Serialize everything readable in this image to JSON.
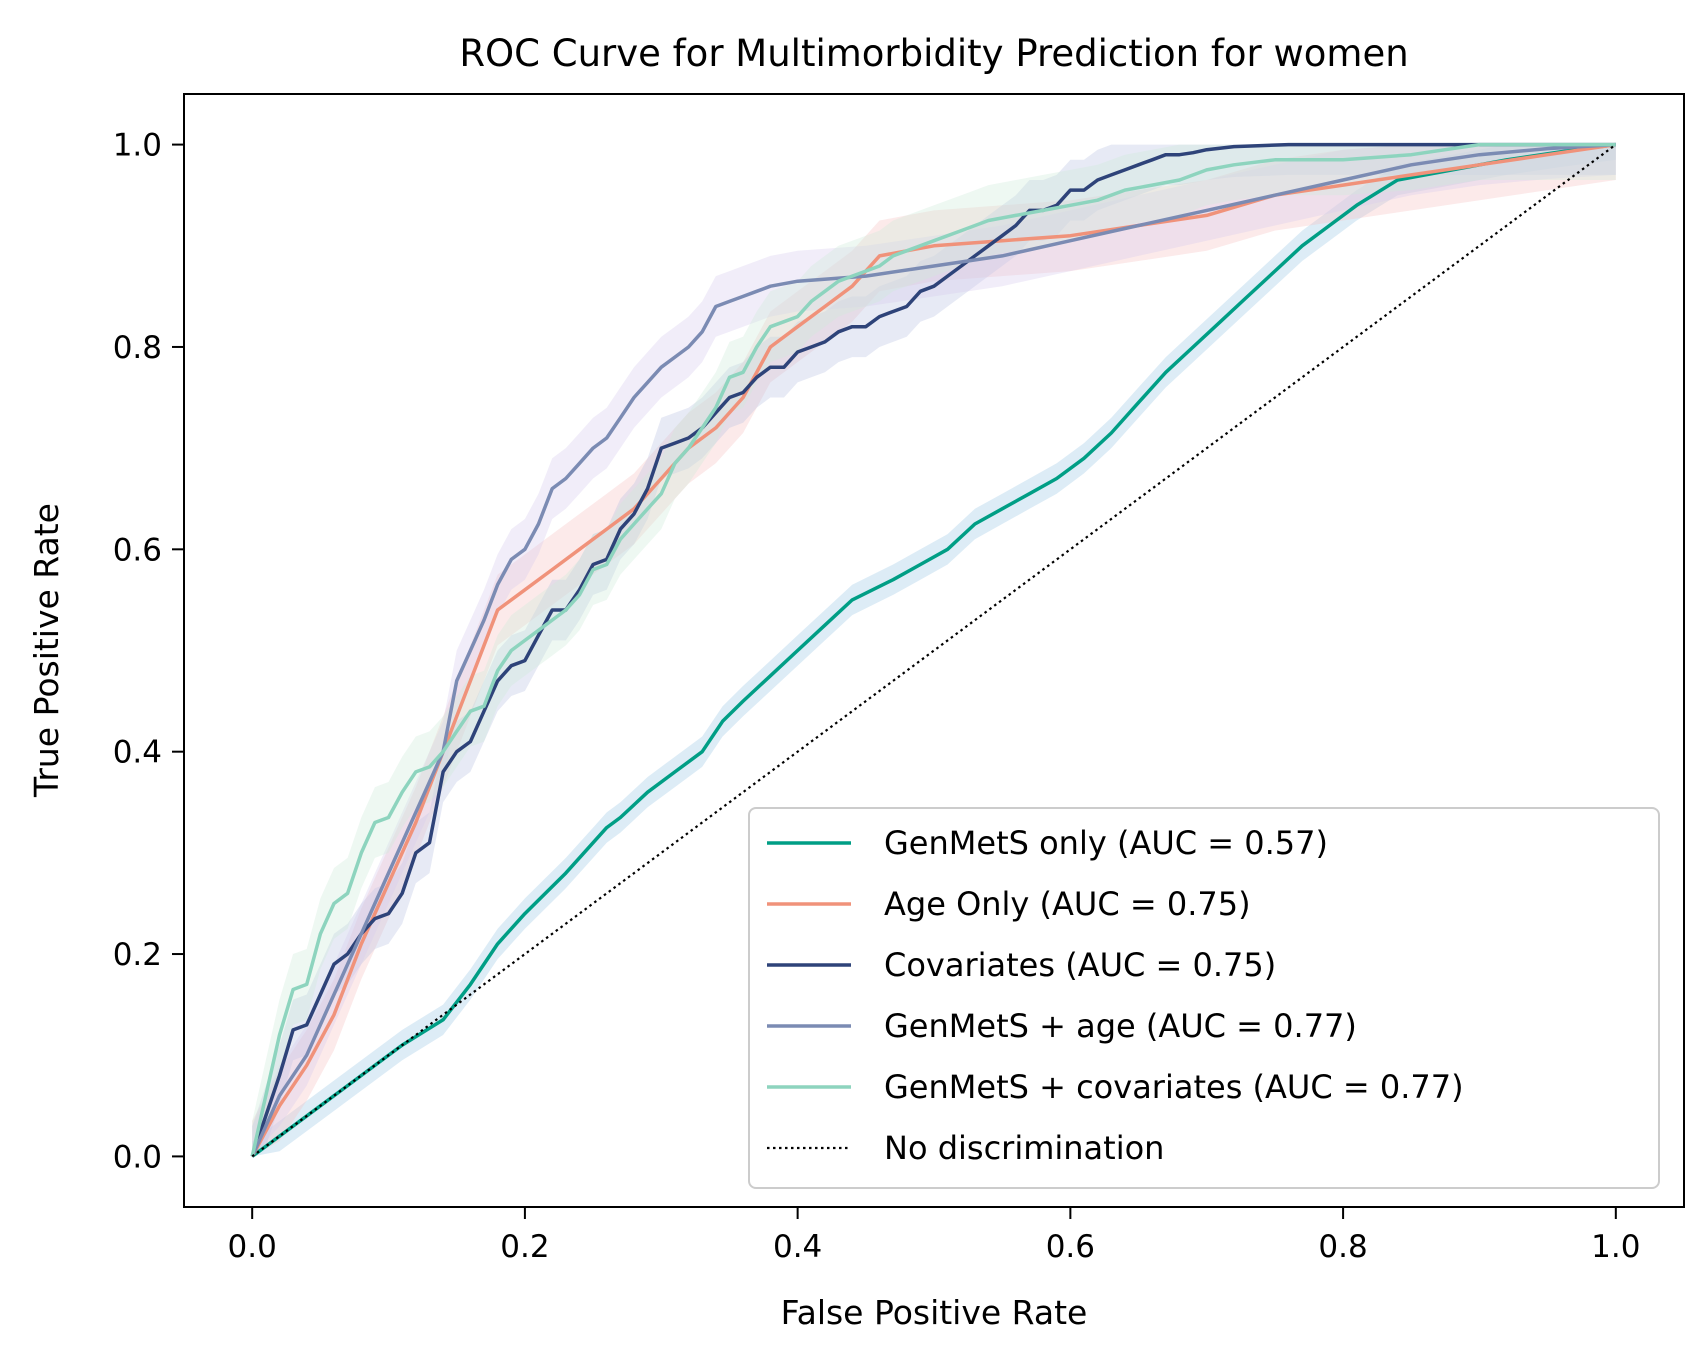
{
  "chart_data": {
    "type": "line",
    "title": "ROC Curve for Multimorbidity Prediction for women",
    "xlabel": "False Positive Rate",
    "ylabel": "True Positive Rate",
    "xlim": [
      -0.05,
      1.05
    ],
    "ylim": [
      -0.05,
      1.05
    ],
    "xticks": [
      0.0,
      0.2,
      0.4,
      0.6,
      0.8,
      1.0
    ],
    "yticks": [
      0.0,
      0.2,
      0.4,
      0.6,
      0.8,
      1.0
    ],
    "xtick_labels": [
      "0.0",
      "0.2",
      "0.4",
      "0.6",
      "0.8",
      "1.0"
    ],
    "ytick_labels": [
      "0.0",
      "0.2",
      "0.4",
      "0.6",
      "0.8",
      "1.0"
    ],
    "grid": false,
    "legend_position": "lower-right",
    "series": [
      {
        "name": "GenMetS only (AUC = 0.57)",
        "color": "#009E85",
        "band_color": "#9EC8E6",
        "x": [
          0.0,
          0.02,
          0.05,
          0.08,
          0.11,
          0.14,
          0.16,
          0.18,
          0.2,
          0.23,
          0.25,
          0.26,
          0.27,
          0.29,
          0.31,
          0.33,
          0.345,
          0.36,
          0.38,
          0.4,
          0.42,
          0.44,
          0.455,
          0.47,
          0.49,
          0.51,
          0.53,
          0.55,
          0.57,
          0.59,
          0.61,
          0.63,
          0.65,
          0.67,
          0.69,
          0.71,
          0.73,
          0.75,
          0.77,
          0.79,
          0.81,
          0.84,
          0.88,
          0.92,
          0.96,
          1.0
        ],
        "y": [
          0.0,
          0.02,
          0.05,
          0.08,
          0.11,
          0.135,
          0.17,
          0.21,
          0.24,
          0.28,
          0.31,
          0.325,
          0.335,
          0.36,
          0.38,
          0.4,
          0.43,
          0.45,
          0.475,
          0.5,
          0.525,
          0.55,
          0.56,
          0.57,
          0.585,
          0.6,
          0.625,
          0.64,
          0.655,
          0.67,
          0.69,
          0.715,
          0.745,
          0.775,
          0.8,
          0.825,
          0.85,
          0.875,
          0.9,
          0.92,
          0.94,
          0.965,
          0.975,
          0.985,
          0.993,
          1.0
        ],
        "band": 0.015
      },
      {
        "name": "Age Only (AUC = 0.75)",
        "color": "#F0927A",
        "band_color": "#F6C4C4",
        "x": [
          0.0,
          0.02,
          0.04,
          0.06,
          0.08,
          0.1,
          0.12,
          0.14,
          0.16,
          0.18,
          0.2,
          0.22,
          0.24,
          0.26,
          0.28,
          0.3,
          0.32,
          0.34,
          0.36,
          0.38,
          0.4,
          0.42,
          0.44,
          0.46,
          0.48,
          0.5,
          0.55,
          0.6,
          0.65,
          0.7,
          0.75,
          0.8,
          0.85,
          0.9,
          0.95,
          1.0
        ],
        "y": [
          0.0,
          0.05,
          0.09,
          0.14,
          0.21,
          0.27,
          0.33,
          0.4,
          0.47,
          0.54,
          0.56,
          0.58,
          0.6,
          0.62,
          0.64,
          0.67,
          0.7,
          0.72,
          0.75,
          0.8,
          0.82,
          0.84,
          0.86,
          0.89,
          0.895,
          0.9,
          0.905,
          0.91,
          0.92,
          0.93,
          0.95,
          0.96,
          0.97,
          0.98,
          0.99,
          1.0
        ],
        "band": 0.035
      },
      {
        "name": "Covariates (AUC = 0.75)",
        "color": "#2E4379",
        "band_color": "#B9C3E3",
        "x": [
          0.0,
          0.01,
          0.02,
          0.03,
          0.04,
          0.05,
          0.06,
          0.07,
          0.08,
          0.09,
          0.1,
          0.11,
          0.12,
          0.13,
          0.14,
          0.15,
          0.16,
          0.17,
          0.18,
          0.19,
          0.2,
          0.21,
          0.22,
          0.23,
          0.24,
          0.25,
          0.26,
          0.27,
          0.28,
          0.29,
          0.3,
          0.31,
          0.32,
          0.33,
          0.34,
          0.35,
          0.36,
          0.37,
          0.38,
          0.39,
          0.4,
          0.41,
          0.42,
          0.43,
          0.44,
          0.45,
          0.46,
          0.47,
          0.48,
          0.49,
          0.5,
          0.51,
          0.52,
          0.53,
          0.54,
          0.55,
          0.56,
          0.57,
          0.58,
          0.59,
          0.6,
          0.61,
          0.62,
          0.63,
          0.64,
          0.65,
          0.66,
          0.67,
          0.68,
          0.69,
          0.7,
          0.72,
          0.74,
          0.76,
          0.78,
          0.8,
          0.85,
          0.9,
          0.95,
          1.0
        ],
        "y": [
          0.0,
          0.04,
          0.08,
          0.125,
          0.13,
          0.16,
          0.19,
          0.2,
          0.22,
          0.235,
          0.24,
          0.26,
          0.3,
          0.31,
          0.38,
          0.4,
          0.41,
          0.44,
          0.47,
          0.485,
          0.49,
          0.515,
          0.54,
          0.54,
          0.56,
          0.585,
          0.59,
          0.62,
          0.635,
          0.66,
          0.7,
          0.705,
          0.71,
          0.72,
          0.735,
          0.75,
          0.755,
          0.77,
          0.78,
          0.78,
          0.795,
          0.8,
          0.805,
          0.815,
          0.82,
          0.82,
          0.83,
          0.835,
          0.84,
          0.855,
          0.86,
          0.87,
          0.88,
          0.89,
          0.9,
          0.91,
          0.92,
          0.935,
          0.935,
          0.94,
          0.955,
          0.955,
          0.965,
          0.97,
          0.975,
          0.98,
          0.985,
          0.99,
          0.99,
          0.992,
          0.995,
          0.998,
          0.999,
          1.0,
          1.0,
          1.0,
          1.0,
          1.0,
          1.0,
          1.0
        ],
        "band": 0.03
      },
      {
        "name": "GenMetS + age (AUC = 0.77)",
        "color": "#7B8BB3",
        "band_color": "#D8CCEE",
        "x": [
          0.0,
          0.02,
          0.04,
          0.06,
          0.08,
          0.1,
          0.12,
          0.14,
          0.15,
          0.16,
          0.17,
          0.18,
          0.19,
          0.2,
          0.21,
          0.22,
          0.23,
          0.24,
          0.25,
          0.26,
          0.27,
          0.28,
          0.29,
          0.3,
          0.31,
          0.32,
          0.33,
          0.34,
          0.35,
          0.36,
          0.37,
          0.38,
          0.4,
          0.45,
          0.5,
          0.55,
          0.6,
          0.65,
          0.7,
          0.75,
          0.8,
          0.85,
          0.9,
          0.95,
          1.0
        ],
        "y": [
          0.0,
          0.06,
          0.1,
          0.16,
          0.22,
          0.28,
          0.34,
          0.4,
          0.47,
          0.5,
          0.53,
          0.565,
          0.59,
          0.6,
          0.625,
          0.66,
          0.67,
          0.685,
          0.7,
          0.71,
          0.73,
          0.75,
          0.765,
          0.78,
          0.79,
          0.8,
          0.815,
          0.84,
          0.845,
          0.85,
          0.855,
          0.86,
          0.865,
          0.87,
          0.88,
          0.89,
          0.905,
          0.92,
          0.935,
          0.95,
          0.965,
          0.98,
          0.99,
          0.996,
          1.0
        ],
        "band": 0.03
      },
      {
        "name": "GenMetS + covariates (AUC = 0.77)",
        "color": "#8DD4BE",
        "band_color": "#CDEBD9",
        "x": [
          0.0,
          0.01,
          0.02,
          0.03,
          0.04,
          0.05,
          0.06,
          0.07,
          0.08,
          0.09,
          0.1,
          0.11,
          0.12,
          0.13,
          0.14,
          0.15,
          0.16,
          0.17,
          0.18,
          0.19,
          0.2,
          0.21,
          0.22,
          0.23,
          0.24,
          0.25,
          0.26,
          0.27,
          0.28,
          0.29,
          0.3,
          0.31,
          0.32,
          0.33,
          0.34,
          0.35,
          0.36,
          0.37,
          0.38,
          0.39,
          0.4,
          0.41,
          0.42,
          0.43,
          0.44,
          0.45,
          0.46,
          0.47,
          0.48,
          0.5,
          0.52,
          0.54,
          0.56,
          0.58,
          0.6,
          0.62,
          0.64,
          0.66,
          0.68,
          0.7,
          0.72,
          0.75,
          0.8,
          0.85,
          0.9,
          0.95,
          1.0
        ],
        "y": [
          0.0,
          0.06,
          0.12,
          0.165,
          0.17,
          0.22,
          0.25,
          0.26,
          0.3,
          0.33,
          0.335,
          0.36,
          0.38,
          0.385,
          0.4,
          0.42,
          0.44,
          0.445,
          0.48,
          0.5,
          0.51,
          0.52,
          0.53,
          0.54,
          0.555,
          0.58,
          0.585,
          0.61,
          0.625,
          0.64,
          0.655,
          0.685,
          0.7,
          0.72,
          0.74,
          0.77,
          0.775,
          0.8,
          0.82,
          0.825,
          0.83,
          0.845,
          0.855,
          0.865,
          0.87,
          0.875,
          0.88,
          0.89,
          0.895,
          0.905,
          0.915,
          0.925,
          0.93,
          0.935,
          0.94,
          0.945,
          0.955,
          0.96,
          0.965,
          0.975,
          0.98,
          0.985,
          0.985,
          0.99,
          1.0,
          1.0,
          1.0
        ],
        "band": 0.035
      },
      {
        "name": "No discrimination",
        "color": "#000000",
        "dashed": true,
        "x": [
          0.0,
          1.0
        ],
        "y": [
          0.0,
          1.0
        ]
      }
    ]
  }
}
